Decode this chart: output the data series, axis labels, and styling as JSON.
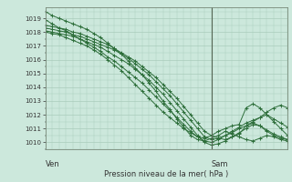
{
  "xlabel": "Pression niveau de la mer( hPa )",
  "bg_color": "#cce8dc",
  "grid_color": "#aaccbb",
  "line_color": "#2d6e3a",
  "ylim": [
    1009.5,
    1019.8
  ],
  "xlim": [
    0,
    35
  ],
  "ven_x": 0,
  "sam_x": 24,
  "yticks": [
    1010,
    1011,
    1012,
    1013,
    1014,
    1015,
    1016,
    1017,
    1018,
    1019
  ],
  "series": [
    [
      1019.5,
      1019.2,
      1019.0,
      1018.8,
      1018.6,
      1018.4,
      1018.2,
      1017.9,
      1017.6,
      1017.2,
      1016.8,
      1016.4,
      1015.9,
      1015.4,
      1014.9,
      1014.3,
      1013.7,
      1013.0,
      1012.4,
      1011.7,
      1011.1,
      1010.5,
      1010.2,
      1010.1,
      1010.3,
      1010.5,
      1010.8,
      1010.6,
      1010.4,
      1010.2,
      1010.1,
      1010.3,
      1010.5,
      1010.4,
      1010.2,
      1010.1
    ],
    [
      1018.5,
      1018.4,
      1018.3,
      1018.2,
      1018.0,
      1017.9,
      1017.7,
      1017.5,
      1017.3,
      1017.1,
      1016.8,
      1016.5,
      1016.2,
      1015.9,
      1015.5,
      1015.1,
      1014.7,
      1014.2,
      1013.7,
      1013.2,
      1012.6,
      1012.0,
      1011.4,
      1010.8,
      1010.5,
      1010.3,
      1010.2,
      1010.4,
      1010.6,
      1011.2,
      1011.5,
      1011.8,
      1012.2,
      1012.5,
      1012.7,
      1012.5
    ],
    [
      1018.3,
      1018.2,
      1018.1,
      1018.0,
      1017.8,
      1017.7,
      1017.5,
      1017.3,
      1017.1,
      1016.9,
      1016.7,
      1016.4,
      1016.1,
      1015.7,
      1015.3,
      1014.9,
      1014.4,
      1013.9,
      1013.4,
      1012.8,
      1012.2,
      1011.6,
      1011.0,
      1010.4,
      1010.2,
      1010.3,
      1010.5,
      1010.7,
      1011.0,
      1011.2,
      1011.4,
      1011.2,
      1010.8,
      1010.5,
      1010.3,
      1010.2
    ],
    [
      1018.1,
      1018.0,
      1017.9,
      1017.8,
      1017.7,
      1017.5,
      1017.3,
      1017.1,
      1016.9,
      1016.6,
      1016.3,
      1016.0,
      1015.7,
      1015.3,
      1014.9,
      1014.5,
      1014.0,
      1013.5,
      1012.9,
      1012.3,
      1011.7,
      1011.1,
      1010.5,
      1010.0,
      1009.8,
      1009.9,
      1010.1,
      1010.4,
      1010.7,
      1011.0,
      1011.3,
      1011.2,
      1010.9,
      1010.6,
      1010.4,
      1010.2
    ],
    [
      1018.9,
      1018.6,
      1018.3,
      1018.1,
      1017.8,
      1017.5,
      1017.2,
      1016.9,
      1016.6,
      1016.2,
      1015.9,
      1015.5,
      1015.1,
      1014.7,
      1014.3,
      1013.8,
      1013.3,
      1012.8,
      1012.3,
      1011.8,
      1011.3,
      1010.8,
      1010.4,
      1010.1,
      1010.0,
      1010.2,
      1010.5,
      1010.8,
      1011.1,
      1011.4,
      1011.6,
      1011.8,
      1012.0,
      1011.7,
      1011.4,
      1011.1
    ],
    [
      1018.0,
      1017.9,
      1017.8,
      1017.6,
      1017.4,
      1017.2,
      1017.0,
      1016.7,
      1016.4,
      1016.0,
      1015.6,
      1015.2,
      1014.7,
      1014.2,
      1013.7,
      1013.2,
      1012.7,
      1012.2,
      1011.8,
      1011.4,
      1011.0,
      1010.7,
      1010.4,
      1010.3,
      1010.5,
      1010.8,
      1011.0,
      1011.2,
      1011.3,
      1012.5,
      1012.8,
      1012.5,
      1012.0,
      1011.5,
      1011.0,
      1010.5
    ]
  ]
}
